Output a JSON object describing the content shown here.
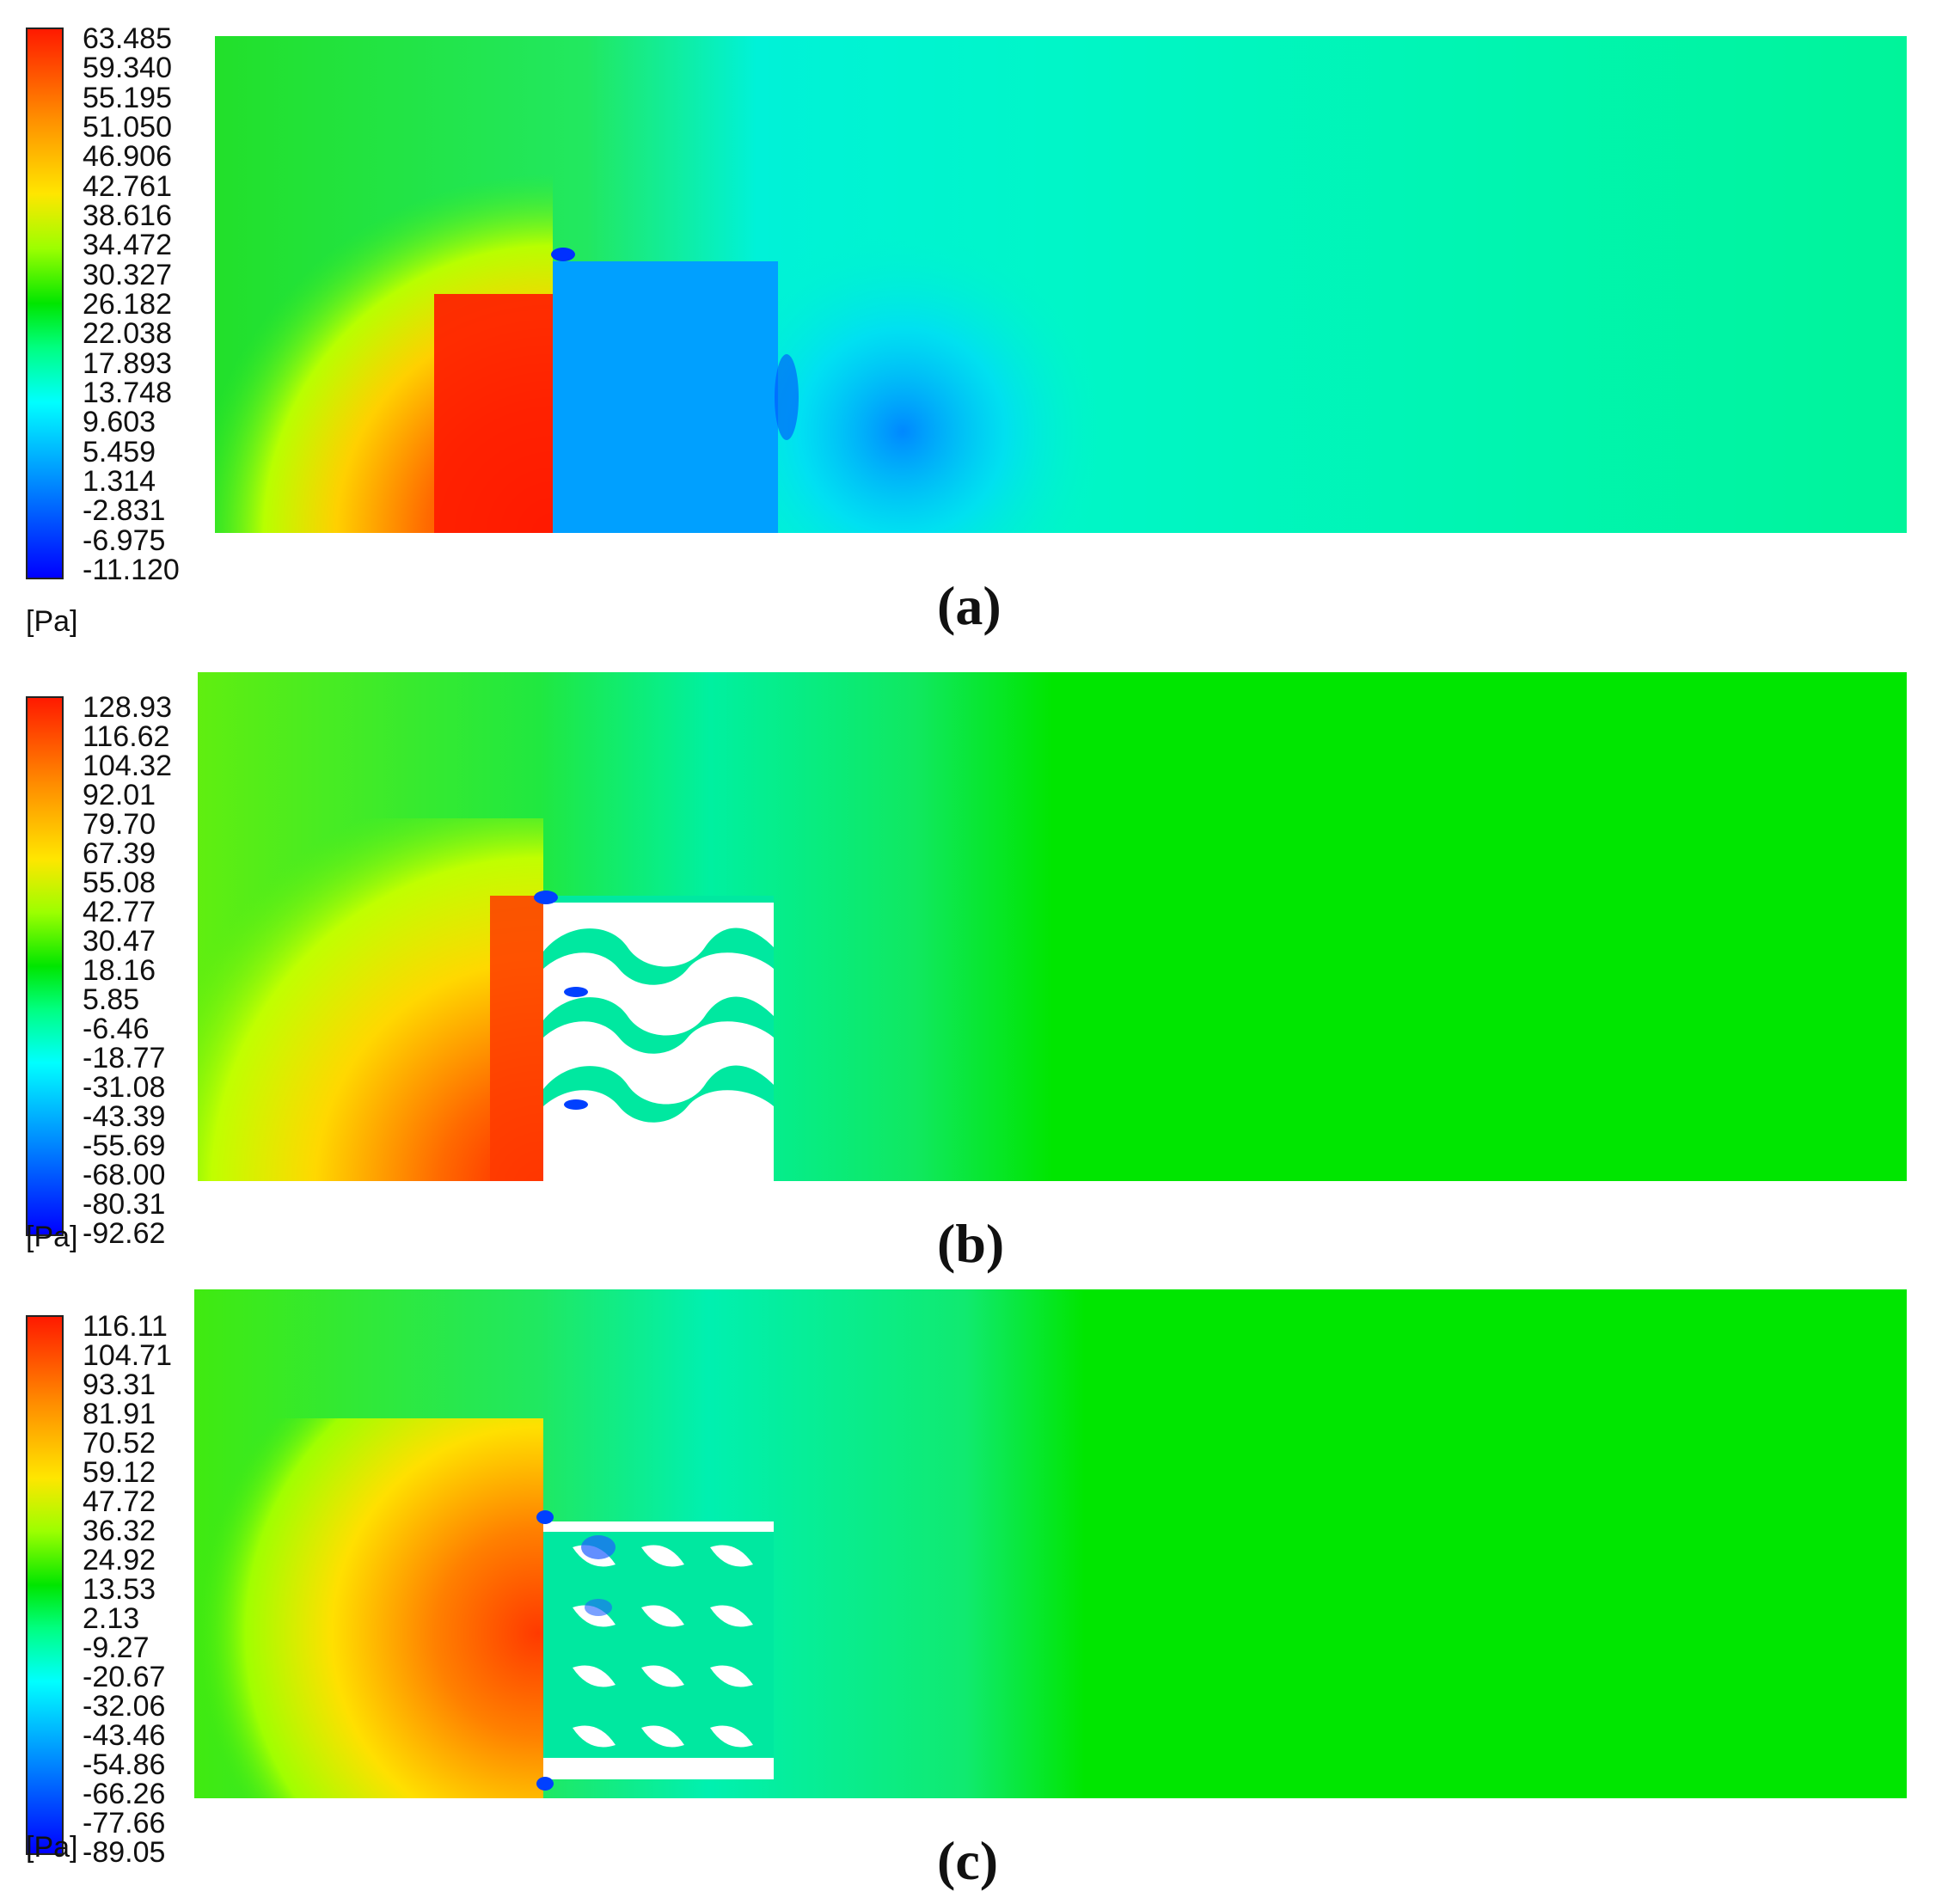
{
  "unit": "[Pa]",
  "panels": [
    {
      "label": "(a)",
      "ticks": [
        "63.485",
        "59.340",
        "55.195",
        "51.050",
        "46.906",
        "42.761",
        "38.616",
        "34.472",
        "30.327",
        "26.182",
        "22.038",
        "17.893",
        "13.748",
        "9.603",
        "5.459",
        "1.314",
        "-2.831",
        "-6.975",
        "-11.120"
      ]
    },
    {
      "label": "(b)",
      "ticks": [
        "128.93",
        "116.62",
        "104.32",
        "92.01",
        "79.70",
        "67.39",
        "55.08",
        "42.77",
        "30.47",
        "18.16",
        "5.85",
        "-6.46",
        "-18.77",
        "-31.08",
        "-43.39",
        "-55.69",
        "-68.00",
        "-80.31",
        "-92.62"
      ]
    },
    {
      "label": "(c)",
      "ticks": [
        "116.11",
        "104.71",
        "93.31",
        "81.91",
        "70.52",
        "59.12",
        "47.72",
        "36.32",
        "24.92",
        "13.53",
        "2.13",
        "-9.27",
        "-20.67",
        "-32.06",
        "-43.46",
        "-54.86",
        "-66.26",
        "-77.66",
        "-89.05"
      ]
    }
  ],
  "colors": {
    "high": "#ff1a00",
    "mid": "#00e600",
    "low": "#0000ff",
    "obstacle_a": "#00a0ff",
    "obstacle_bc": "#ffffff"
  }
}
